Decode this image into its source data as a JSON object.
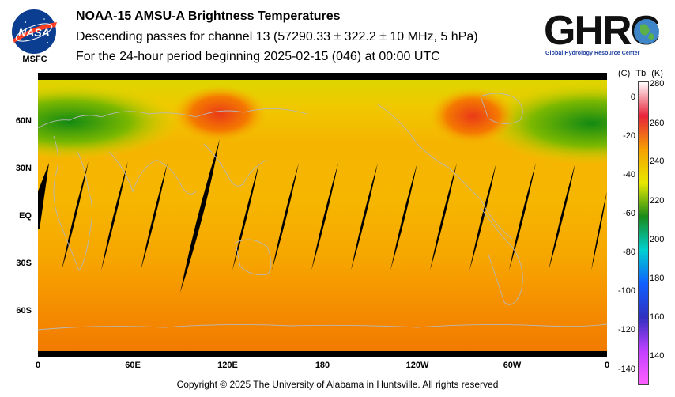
{
  "header": {
    "title": "NOAA-15 AMSU-A Brightness Temperatures",
    "line2": "Descending passes for channel 13 (57290.33 ± 322.2 ± 10 MHz, 5 hPa)",
    "line3": "For the 24-hour period beginning 2025-02-15 (046) at 00:00 UTC"
  },
  "logos": {
    "nasa_text": "NASA",
    "nasa_sub": "MSFC",
    "ghrc_text": "GHRC",
    "ghrc_name": "Global Hydrology Resource Center"
  },
  "map": {
    "lat_labels": [
      "60N",
      "30N",
      "EQ",
      "30S",
      "60S"
    ],
    "lon_labels": [
      "0",
      "60E",
      "120E",
      "180",
      "120W",
      "60W",
      "0"
    ]
  },
  "colorbar": {
    "unit_c": "(C)",
    "unit_tb": "Tb",
    "unit_k": "(K)",
    "celsius_ticks": [
      "0",
      "-20",
      "-40",
      "-60",
      "-80",
      "-100",
      "-120",
      "-140"
    ],
    "kelvin_ticks": [
      "280",
      "260",
      "240",
      "220",
      "200",
      "180",
      "160",
      "140"
    ],
    "colors": [
      "#ffffff",
      "#e8233a",
      "#f5a000",
      "#e8e800",
      "#1a8a1a",
      "#00d0d0",
      "#1060ff",
      "#3030c0",
      "#c040ff",
      "#ff60ff"
    ]
  },
  "footer": {
    "copyright": "Copyright © 2025 The University of Alabama in Huntsville.  All rights reserved"
  }
}
